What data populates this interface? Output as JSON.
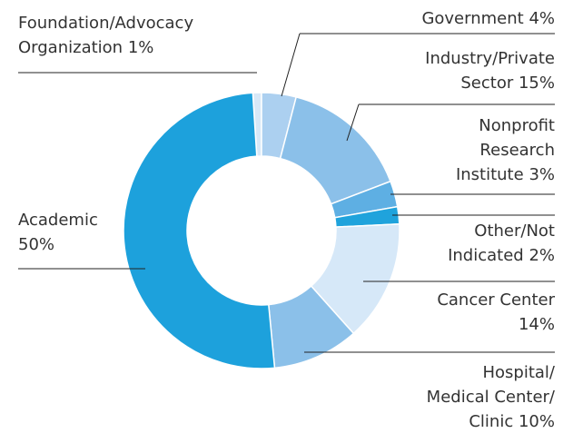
{
  "chart_data": {
    "type": "donut",
    "categories": [
      "Foundation/Advocacy Organization",
      "Government",
      "Industry/Private Sector",
      "Nonprofit Research Institute",
      "Other/Not Indicated",
      "Cancer Center",
      "Hospital/ Medical Center/ Clinic",
      "Academic"
    ],
    "values": [
      1,
      4,
      15,
      3,
      2,
      14,
      10,
      50
    ],
    "value_labels": [
      "1%",
      "4%",
      "15%",
      "3%",
      "2%",
      "14%",
      "10%",
      "50%"
    ],
    "colors": [
      "#d8e8f7",
      "#acd0f0",
      "#8bc0e9",
      "#5eafe3",
      "#1fa3dc",
      "#d6e8f8",
      "#8bc0e9",
      "#1da1dc"
    ]
  }
}
